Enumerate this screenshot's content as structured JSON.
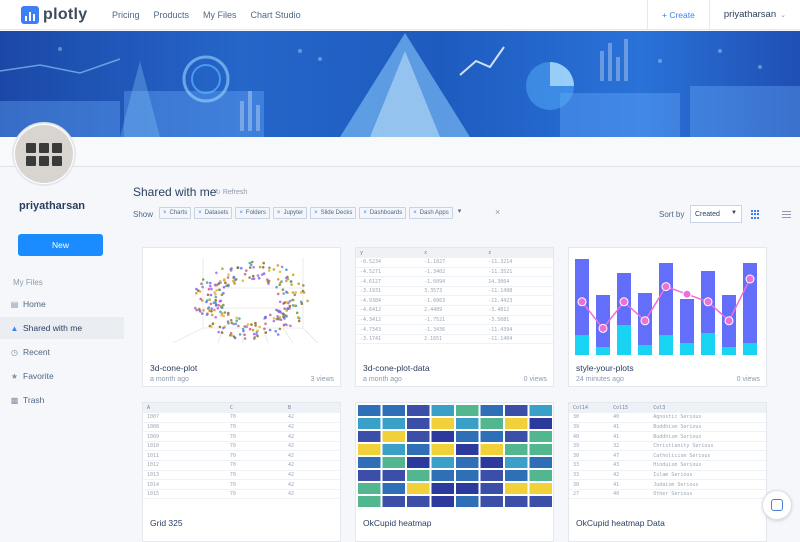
{
  "app": {
    "logo_text": "plotly"
  },
  "nav": {
    "links": [
      "Pricing",
      "Products",
      "My Files",
      "Chart Studio"
    ],
    "create_label": "+ Create",
    "username": "priyatharsan"
  },
  "profile": {
    "username": "priyatharsan",
    "new_label": "New"
  },
  "sidebar": {
    "section_label": "My Files",
    "items": [
      {
        "label": "Home",
        "icon": "folder-icon"
      },
      {
        "label": "Shared with me",
        "icon": "shared-icon"
      },
      {
        "label": "Recent",
        "icon": "clock-icon"
      },
      {
        "label": "Favorite",
        "icon": "star-icon"
      },
      {
        "label": "Trash",
        "icon": "trash-icon"
      }
    ]
  },
  "main": {
    "title": "Shared with me",
    "refresh_label": "Refresh",
    "show_label": "Show",
    "filters": [
      "Charts",
      "Datasets",
      "Folders",
      "Jupyter",
      "Slide Decks",
      "Dashboards",
      "Dash Apps"
    ],
    "sort_label": "Sort by",
    "sort_value": "Created"
  },
  "cards": [
    {
      "title": "3d-cone-plot",
      "meta": "a month ago",
      "views": "3 views"
    },
    {
      "title": "3d-cone-plot-data",
      "meta": "a month ago",
      "views": "0 views"
    },
    {
      "title": "style-your-plots",
      "meta": "24 minutes ago",
      "views": "0 views"
    },
    {
      "title": "Grid 325",
      "meta": "",
      "views": ""
    },
    {
      "title": "OkCupid heatmap",
      "meta": "",
      "views": ""
    },
    {
      "title": "OkCupid heatmap Data",
      "meta": "",
      "views": ""
    }
  ],
  "colors": {
    "accent": "#1a8cff",
    "bar_dark": "#636efa",
    "bar_light": "#19d3f3",
    "line": "#ef6ed8"
  }
}
